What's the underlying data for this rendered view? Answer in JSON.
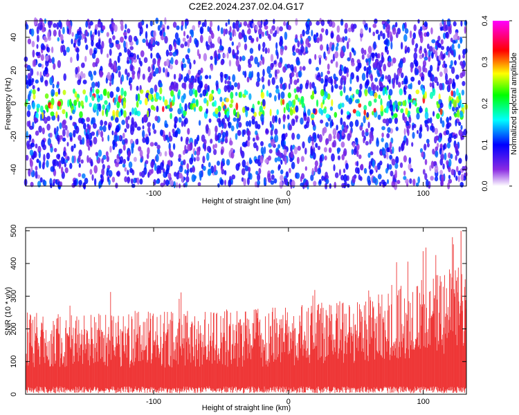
{
  "title": "C2E2.2024.237.02.04.G17",
  "chart_data": [
    {
      "type": "heatmap",
      "xlabel": "Height of straight line (km)",
      "ylabel": "Frequency (Hz)",
      "xlim": [
        -195,
        132
      ],
      "ylim": [
        -50,
        50
      ],
      "xticks": [
        -100,
        0,
        100
      ],
      "yticks": [
        -40,
        -20,
        0,
        20,
        40
      ],
      "band_center_hz": 0,
      "band_halfwidth_hz": 8,
      "colorbar": {
        "label": "Normalized spectral amplitude",
        "range": [
          0.0,
          0.4
        ],
        "ticks": [
          "0.0",
          "0.1",
          "0.2",
          "0.3",
          "0.4"
        ],
        "colors": [
          "#ffffff",
          "#8a2be2",
          "#0000ff",
          "#00ffff",
          "#00ff00",
          "#ffff00",
          "#ff0000",
          "#ff00ff"
        ]
      }
    },
    {
      "type": "area",
      "xlabel": "Height of straight line (km)",
      "ylabel": "SNR (10 * v/v)",
      "xlim": [
        -195,
        132
      ],
      "ylim": [
        0,
        510
      ],
      "xticks": [
        -100,
        0,
        100
      ],
      "yticks": [
        0,
        100,
        200,
        300,
        400,
        500
      ],
      "color": "#ee3333",
      "envelope": {
        "x": [
          -195,
          -150,
          -100,
          -50,
          0,
          50,
          80,
          100,
          120,
          132
        ],
        "upper": [
          230,
          225,
          230,
          235,
          245,
          265,
          300,
          320,
          350,
          370
        ],
        "lower": [
          15,
          15,
          15,
          15,
          15,
          15,
          15,
          15,
          15,
          15
        ],
        "spike_x": 128,
        "spike_y": 500
      }
    }
  ]
}
